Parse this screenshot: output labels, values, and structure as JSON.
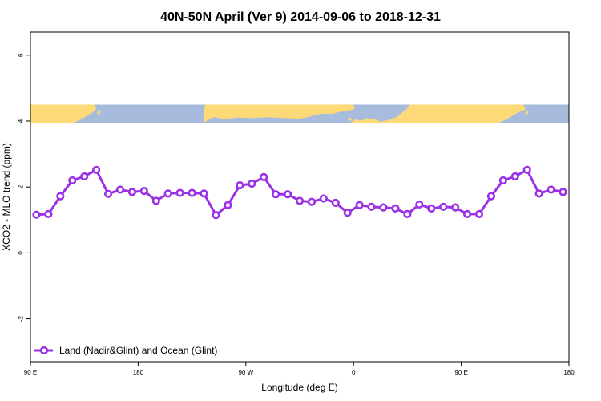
{
  "chart_data": {
    "type": "line",
    "title": "40N-50N April (Ver 9)   2014-09-06 to 2018-12-31",
    "xlabel": "Longitude (deg E)",
    "ylabel": "XCO2 - MLO trend (ppm)",
    "xlim": [
      90,
      540
    ],
    "ylim": [
      -3.3,
      6.7
    ],
    "x_ticks": [
      {
        "value": 90,
        "label": "90 E"
      },
      {
        "value": 180,
        "label": "180"
      },
      {
        "value": 270,
        "label": "90 W"
      },
      {
        "value": 360,
        "label": "0"
      },
      {
        "value": 450,
        "label": "90 E"
      },
      {
        "value": 540,
        "label": "180"
      }
    ],
    "y_ticks": [
      {
        "value": -2,
        "label": "-2"
      },
      {
        "value": 0,
        "label": "0"
      },
      {
        "value": 2,
        "label": "2"
      },
      {
        "value": 4,
        "label": "4"
      },
      {
        "value": 6,
        "label": "6"
      }
    ],
    "map_strip": {
      "ymin": 3.95,
      "ymax": 4.5,
      "ocean_color": "#a7bcdc",
      "land_color": "#fdd978"
    },
    "legend_position": "bottom-left",
    "series": [
      {
        "name": "Land (Nadir&Glint) and Ocean (Glint)",
        "color": "#9b30e6",
        "x": [
          95,
          105,
          115,
          125,
          135,
          145,
          155,
          165,
          175,
          185,
          195,
          205,
          215,
          225,
          235,
          245,
          255,
          265,
          275,
          285,
          295,
          305,
          315,
          325,
          335,
          345,
          355,
          365,
          375,
          385,
          395,
          405,
          415,
          425,
          435,
          445,
          455,
          465,
          475,
          485,
          495,
          505,
          515,
          525,
          535
        ],
        "y": [
          1.16,
          1.18,
          1.72,
          2.2,
          2.32,
          2.52,
          1.79,
          1.92,
          1.85,
          1.88,
          1.58,
          1.8,
          1.82,
          1.82,
          1.8,
          1.15,
          1.45,
          2.05,
          2.1,
          2.3,
          1.78,
          1.78,
          1.58,
          1.55,
          1.65,
          1.52,
          1.22,
          1.45,
          1.4,
          1.38,
          1.35,
          1.18,
          1.47,
          1.35,
          1.4,
          1.38,
          1.18,
          1.18,
          1.72,
          2.2,
          2.32,
          2.52,
          1.8,
          1.92,
          1.85
        ]
      }
    ]
  }
}
